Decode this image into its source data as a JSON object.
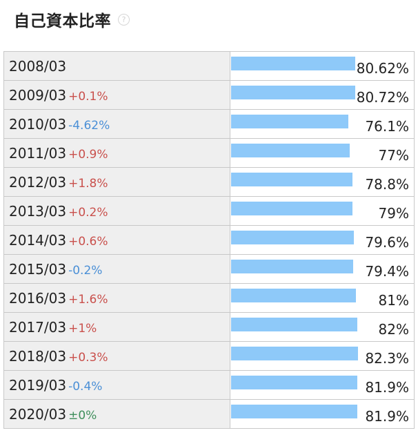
{
  "header": {
    "title": "自己資本比率",
    "help_icon": "?"
  },
  "colors": {
    "bar": "#8ec9f9",
    "increase": "#c9504c",
    "decrease": "#4a8fd6",
    "unchanged": "#3f8f5c",
    "label_cell": "#efefef",
    "border": "#c8c8c8"
  },
  "chart_data": {
    "type": "bar",
    "title": "自己資本比率",
    "unit": "%",
    "categories": [
      "2008/03",
      "2009/03",
      "2010/03",
      "2011/03",
      "2012/03",
      "2013/03",
      "2014/03",
      "2015/03",
      "2016/03",
      "2017/03",
      "2018/03",
      "2019/03",
      "2020/03"
    ],
    "values": [
      80.62,
      80.72,
      76.1,
      77,
      78.8,
      79,
      79.6,
      79.4,
      81,
      82,
      82.3,
      81.9,
      81.9
    ],
    "value_labels": [
      "80.62%",
      "80.72%",
      "76.1%",
      "77%",
      "78.8%",
      "79%",
      "79.6%",
      "79.4%",
      "81%",
      "82%",
      "82.3%",
      "81.9%",
      "81.9%"
    ],
    "changes": [
      "",
      "+0.1%",
      "-4.62%",
      "+0.9%",
      "+1.8%",
      "+0.2%",
      "+0.6%",
      "-0.2%",
      "+1.6%",
      "+1%",
      "+0.3%",
      "-0.4%",
      "±0%"
    ],
    "change_direction": [
      "none",
      "up",
      "down",
      "up",
      "up",
      "up",
      "up",
      "down",
      "up",
      "up",
      "up",
      "down",
      "flat"
    ]
  }
}
